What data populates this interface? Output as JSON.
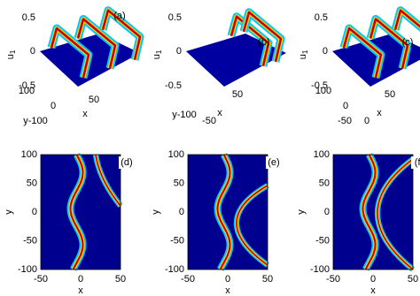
{
  "panels_3d": [
    {
      "label": "(a)",
      "z_label": "u",
      "z_label_sub": "1",
      "z_ticks": [
        "0.5",
        "0",
        "-0.5"
      ],
      "y_ticks": [
        "100",
        "0",
        "y-100"
      ],
      "x_ticks": [
        "50"
      ],
      "x_label": "x"
    },
    {
      "label": "(b)",
      "z_label": "u",
      "z_label_sub": "1",
      "z_ticks": [
        "0.5",
        "0",
        "-0.5"
      ],
      "y_ticks": [
        "y-100"
      ],
      "x_ticks": [
        "-50",
        "50"
      ],
      "x_label": "x"
    },
    {
      "label": "(c)",
      "z_label": "u",
      "z_label_sub": "1",
      "z_ticks": [
        "0.5",
        "0",
        "-0.5"
      ],
      "y_ticks": [
        "100",
        "0"
      ],
      "x_ticks": [
        "-50",
        "0",
        "50"
      ],
      "x_label": "x"
    }
  ],
  "panels_2d": [
    {
      "label": "(d)",
      "y_label": "y",
      "x_label": "x",
      "y_ticks": [
        "100",
        "50",
        "0",
        "-50",
        "-100"
      ],
      "x_ticks": [
        "-50",
        "0",
        "50"
      ]
    },
    {
      "label": "(e)",
      "y_label": "y",
      "x_label": "x",
      "y_ticks": [
        "100",
        "50",
        "0",
        "-50",
        "-100"
      ],
      "x_ticks": [
        "-50",
        "0",
        "50"
      ]
    },
    {
      "label": "(f)",
      "y_label": "y",
      "x_label": "x",
      "y_ticks": [
        "100",
        "50",
        "0",
        "-50",
        "-100"
      ],
      "x_ticks": [
        "-50",
        "0",
        "50"
      ]
    }
  ]
}
